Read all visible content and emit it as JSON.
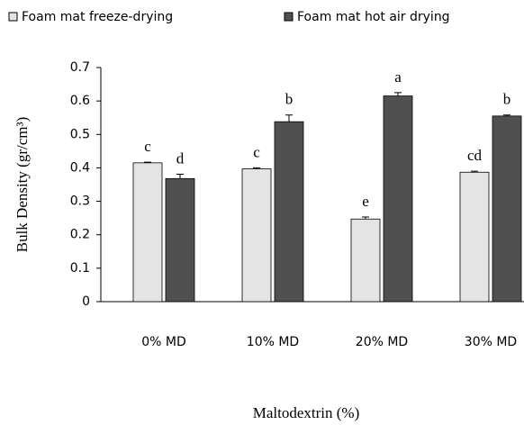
{
  "chart_data": {
    "type": "bar",
    "x_label": "Maltodextrin (%)",
    "y_label": "Bulk Density (gr/cm³)",
    "categories": [
      "0% MD",
      "10% MD",
      "20% MD",
      "30% MD"
    ],
    "series": [
      {
        "name": "Foam mat freeze-drying",
        "color": "#e4e4e4",
        "values": [
          0.415,
          0.397,
          0.247,
          0.387
        ],
        "errors": [
          0.002,
          0.003,
          0.006,
          0.003
        ],
        "letters": [
          "c",
          "c",
          "e",
          "cd"
        ]
      },
      {
        "name": "Foam mat hot air drying",
        "color": "#505050",
        "values": [
          0.368,
          0.538,
          0.615,
          0.555
        ],
        "errors": [
          0.013,
          0.02,
          0.01,
          0.003
        ],
        "letters": [
          "d",
          "b",
          "a",
          "b"
        ]
      }
    ],
    "ylim": [
      0,
      0.7
    ],
    "yticks": [
      0,
      0.1,
      0.2,
      0.3,
      0.4,
      0.5,
      0.6,
      0.7
    ],
    "legend": "top"
  }
}
